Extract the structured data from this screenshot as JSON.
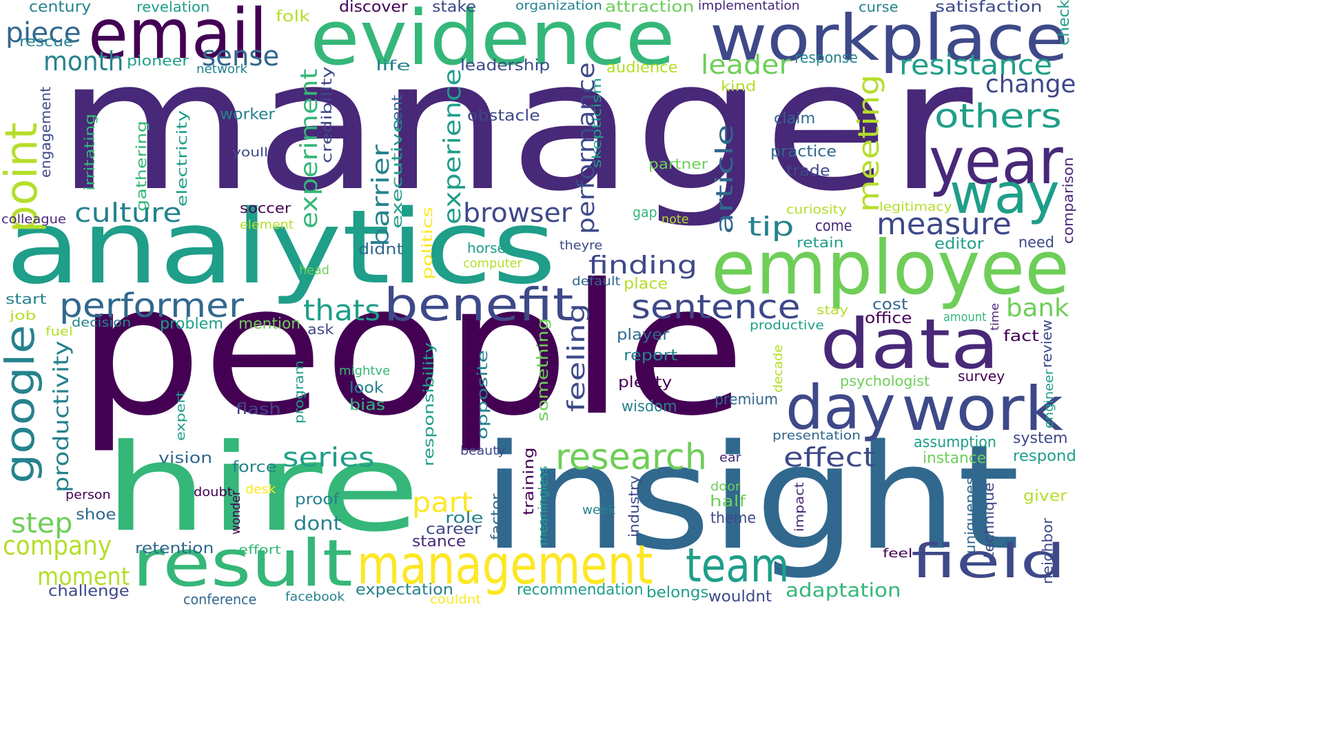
{
  "palette": {
    "dark_purple": "#440154",
    "purple": "#482878",
    "indigo": "#3e4989",
    "blue": "#31688e",
    "teal": "#26828e",
    "cyan_green": "#1f9e89",
    "green": "#35b779",
    "lime": "#6ece58",
    "yellow_green": "#b5de2b",
    "yellow": "#fde725"
  },
  "words": [
    {
      "text": "manager",
      "color": "purple"
    },
    {
      "text": "people",
      "color": "dark_purple"
    },
    {
      "text": "insight",
      "color": "blue"
    },
    {
      "text": "hire",
      "color": "green"
    },
    {
      "text": "analytics",
      "color": "cyan_green"
    },
    {
      "text": "evidence",
      "color": "green"
    },
    {
      "text": "workplace",
      "color": "indigo"
    },
    {
      "text": "email",
      "color": "dark_purple"
    },
    {
      "text": "employee",
      "color": "lime"
    },
    {
      "text": "data",
      "color": "purple"
    },
    {
      "text": "result",
      "color": "green"
    },
    {
      "text": "management",
      "color": "yellow"
    },
    {
      "text": "year",
      "color": "purple"
    },
    {
      "text": "way",
      "color": "cyan_green"
    },
    {
      "text": "day",
      "color": "indigo"
    },
    {
      "text": "work",
      "color": "indigo"
    },
    {
      "text": "field",
      "color": "indigo"
    },
    {
      "text": "team",
      "color": "cyan_green"
    },
    {
      "text": "benefit",
      "color": "indigo"
    },
    {
      "text": "point",
      "color": "yellow_green"
    },
    {
      "text": "google",
      "color": "teal"
    },
    {
      "text": "research",
      "color": "lime"
    },
    {
      "text": "performer",
      "color": "blue"
    },
    {
      "text": "sentence",
      "color": "indigo"
    },
    {
      "text": "meeting",
      "color": "yellow_green"
    },
    {
      "text": "others",
      "color": "cyan_green"
    },
    {
      "text": "measure",
      "color": "indigo"
    },
    {
      "text": "change",
      "color": "indigo"
    },
    {
      "text": "resistance",
      "color": "cyan_green"
    },
    {
      "text": "leader",
      "color": "lime"
    },
    {
      "text": "piece",
      "color": "blue"
    },
    {
      "text": "month",
      "color": "teal"
    },
    {
      "text": "sense",
      "color": "blue"
    },
    {
      "text": "culture",
      "color": "teal"
    },
    {
      "text": "thats",
      "color": "cyan_green"
    },
    {
      "text": "browser",
      "color": "indigo"
    },
    {
      "text": "experiment",
      "color": "green"
    },
    {
      "text": "barrier",
      "color": "teal"
    },
    {
      "text": "experience",
      "color": "cyan_green"
    },
    {
      "text": "performance",
      "color": "indigo"
    },
    {
      "text": "article",
      "color": "blue"
    },
    {
      "text": "tip",
      "color": "teal"
    },
    {
      "text": "finding",
      "color": "indigo"
    },
    {
      "text": "feeling",
      "color": "indigo"
    },
    {
      "text": "bank",
      "color": "lime"
    },
    {
      "text": "effect",
      "color": "indigo"
    },
    {
      "text": "series",
      "color": "cyan_green"
    },
    {
      "text": "part",
      "color": "yellow"
    },
    {
      "text": "step",
      "color": "lime"
    },
    {
      "text": "company",
      "color": "yellow_green"
    },
    {
      "text": "moment",
      "color": "yellow_green"
    },
    {
      "text": "productivity",
      "color": "teal"
    },
    {
      "text": "adaptation",
      "color": "green"
    },
    {
      "text": "century",
      "color": "teal"
    },
    {
      "text": "revelation",
      "color": "cyan_green"
    },
    {
      "text": "folk",
      "color": "yellow_green"
    },
    {
      "text": "discover",
      "color": "dark_purple"
    },
    {
      "text": "stake",
      "color": "indigo"
    },
    {
      "text": "organization",
      "color": "teal"
    },
    {
      "text": "attraction",
      "color": "lime"
    },
    {
      "text": "implementation",
      "color": "purple"
    },
    {
      "text": "curse",
      "color": "teal"
    },
    {
      "text": "satisfaction",
      "color": "indigo"
    },
    {
      "text": "check",
      "color": "cyan_green"
    },
    {
      "text": "rescue",
      "color": "teal"
    },
    {
      "text": "pioneer",
      "color": "cyan_green"
    },
    {
      "text": "network",
      "color": "teal"
    },
    {
      "text": "life",
      "color": "teal"
    },
    {
      "text": "leadership",
      "color": "indigo"
    },
    {
      "text": "audience",
      "color": "yellow_green"
    },
    {
      "text": "response",
      "color": "teal"
    },
    {
      "text": "kind",
      "color": "yellow_green"
    },
    {
      "text": "credibility",
      "color": "indigo"
    },
    {
      "text": "worker",
      "color": "teal"
    },
    {
      "text": "obstacle",
      "color": "indigo"
    },
    {
      "text": "skepticism",
      "color": "cyan_green"
    },
    {
      "text": "claim",
      "color": "blue"
    },
    {
      "text": "engagement",
      "color": "indigo"
    },
    {
      "text": "irritating",
      "color": "green"
    },
    {
      "text": "gathering",
      "color": "green"
    },
    {
      "text": "electricity",
      "color": "cyan_green"
    },
    {
      "text": "youll",
      "color": "indigo"
    },
    {
      "text": "executive",
      "color": "cyan_green"
    },
    {
      "text": "sent",
      "color": "blue"
    },
    {
      "text": "partner",
      "color": "lime"
    },
    {
      "text": "practice",
      "color": "blue"
    },
    {
      "text": "trade",
      "color": "indigo"
    },
    {
      "text": "comparison",
      "color": "purple"
    },
    {
      "text": "curiosity",
      "color": "yellow_green"
    },
    {
      "text": "legitimacy",
      "color": "yellow_green"
    },
    {
      "text": "colleague",
      "color": "purple"
    },
    {
      "text": "soccer",
      "color": "dark_purple"
    },
    {
      "text": "element",
      "color": "yellow_green"
    },
    {
      "text": "politics",
      "color": "yellow"
    },
    {
      "text": "gap",
      "color": "green"
    },
    {
      "text": "note",
      "color": "yellow_green"
    },
    {
      "text": "come",
      "color": "purple"
    },
    {
      "text": "retain",
      "color": "cyan_green"
    },
    {
      "text": "editor",
      "color": "cyan_green"
    },
    {
      "text": "need",
      "color": "indigo"
    },
    {
      "text": "didnt",
      "color": "blue"
    },
    {
      "text": "horse",
      "color": "cyan_green"
    },
    {
      "text": "theyre",
      "color": "indigo"
    },
    {
      "text": "computer",
      "color": "yellow_green"
    },
    {
      "text": "head",
      "color": "lime"
    },
    {
      "text": "default",
      "color": "blue"
    },
    {
      "text": "place",
      "color": "yellow_green"
    },
    {
      "text": "start",
      "color": "teal"
    },
    {
      "text": "job",
      "color": "yellow_green"
    },
    {
      "text": "fuel",
      "color": "yellow_green"
    },
    {
      "text": "decision",
      "color": "teal"
    },
    {
      "text": "problem",
      "color": "cyan_green"
    },
    {
      "text": "mention",
      "color": "lime"
    },
    {
      "text": "ask",
      "color": "indigo"
    },
    {
      "text": "stay",
      "color": "yellow_green"
    },
    {
      "text": "cost",
      "color": "blue"
    },
    {
      "text": "office",
      "color": "dark_purple"
    },
    {
      "text": "amount",
      "color": "green"
    },
    {
      "text": "time",
      "color": "purple"
    },
    {
      "text": "productive",
      "color": "cyan_green"
    },
    {
      "text": "player",
      "color": "blue"
    },
    {
      "text": "fact",
      "color": "dark_purple"
    },
    {
      "text": "review",
      "color": "indigo"
    },
    {
      "text": "engineer",
      "color": "cyan_green"
    },
    {
      "text": "report",
      "color": "teal"
    },
    {
      "text": "decade",
      "color": "yellow_green"
    },
    {
      "text": "psychologist",
      "color": "lime"
    },
    {
      "text": "survey",
      "color": "dark_purple"
    },
    {
      "text": "plenty",
      "color": "dark_purple"
    },
    {
      "text": "mightve",
      "color": "green"
    },
    {
      "text": "look",
      "color": "teal"
    },
    {
      "text": "bias",
      "color": "green"
    },
    {
      "text": "responsibility",
      "color": "cyan_green"
    },
    {
      "text": "opposite",
      "color": "teal"
    },
    {
      "text": "something",
      "color": "lime"
    },
    {
      "text": "expert",
      "color": "cyan_green"
    },
    {
      "text": "program",
      "color": "cyan_green"
    },
    {
      "text": "flash",
      "color": "indigo"
    },
    {
      "text": "wisdom",
      "color": "teal"
    },
    {
      "text": "premium",
      "color": "blue"
    },
    {
      "text": "presentation",
      "color": "blue"
    },
    {
      "text": "assumption",
      "color": "cyan_green"
    },
    {
      "text": "system",
      "color": "indigo"
    },
    {
      "text": "instance",
      "color": "lime"
    },
    {
      "text": "respond",
      "color": "cyan_green"
    },
    {
      "text": "beauty",
      "color": "indigo"
    },
    {
      "text": "vision",
      "color": "blue"
    },
    {
      "text": "force",
      "color": "teal"
    },
    {
      "text": "person",
      "color": "dark_purple"
    },
    {
      "text": "doubt",
      "color": "dark_purple"
    },
    {
      "text": "desk",
      "color": "yellow"
    },
    {
      "text": "meaningless",
      "color": "cyan_green"
    },
    {
      "text": "training",
      "color": "dark_purple"
    },
    {
      "text": "ear",
      "color": "purple"
    },
    {
      "text": "industry",
      "color": "indigo"
    },
    {
      "text": "door",
      "color": "lime"
    },
    {
      "text": "half",
      "color": "lime"
    },
    {
      "text": "impact",
      "color": "purple"
    },
    {
      "text": "uniqueness",
      "color": "blue"
    },
    {
      "text": "technique",
      "color": "indigo"
    },
    {
      "text": "giver",
      "color": "yellow_green"
    },
    {
      "text": "neighbor",
      "color": "indigo"
    },
    {
      "text": "shoe",
      "color": "blue"
    },
    {
      "text": "wonder",
      "color": "dark_purple"
    },
    {
      "text": "proof",
      "color": "teal"
    },
    {
      "text": "dont",
      "color": "teal"
    },
    {
      "text": "role",
      "color": "teal"
    },
    {
      "text": "factor",
      "color": "blue"
    },
    {
      "text": "week",
      "color": "teal"
    },
    {
      "text": "theme",
      "color": "indigo"
    },
    {
      "text": "career",
      "color": "indigo"
    },
    {
      "text": "stance",
      "color": "purple"
    },
    {
      "text": "feel",
      "color": "dark_purple"
    },
    {
      "text": "retention",
      "color": "blue"
    },
    {
      "text": "effort",
      "color": "green"
    },
    {
      "text": "challenge",
      "color": "indigo"
    },
    {
      "text": "conference",
      "color": "blue"
    },
    {
      "text": "facebook",
      "color": "teal"
    },
    {
      "text": "couldnt",
      "color": "yellow"
    },
    {
      "text": "expectation",
      "color": "teal"
    },
    {
      "text": "recommendation",
      "color": "cyan_green"
    },
    {
      "text": "belongs",
      "color": "cyan_green"
    },
    {
      "text": "wouldnt",
      "color": "indigo"
    }
  ]
}
